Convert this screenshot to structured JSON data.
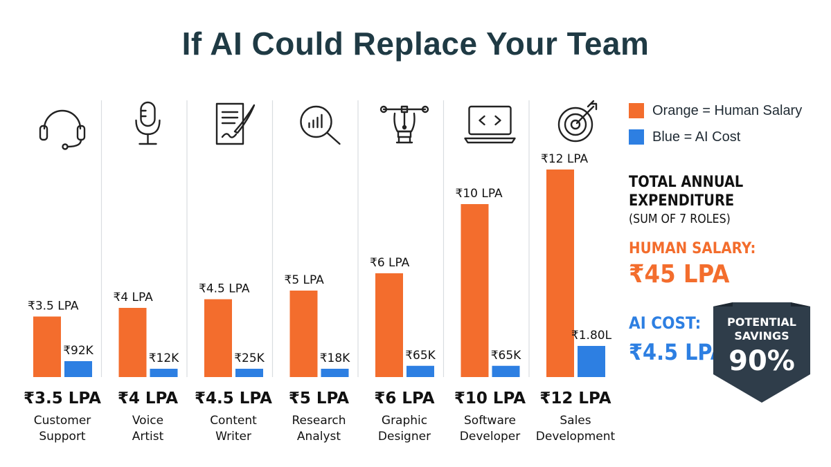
{
  "title": "If AI Could Replace Your Team",
  "colors": {
    "human": "#f36d2d",
    "ai": "#2d7fe2",
    "badge": "#2f3d4a"
  },
  "legend": {
    "human": "Orange = Human Salary",
    "ai": "Blue = AI Cost"
  },
  "summary": {
    "heading_line1": "TOTAL ANNUAL",
    "heading_line2": "EXPENDITURE",
    "subheading": "(SUM OF 7 ROLES)",
    "human_label": "HUMAN SALARY:",
    "human_value": "₹45 LPA",
    "ai_label": "AI COST:",
    "ai_value": "₹4.5 LPA"
  },
  "badge": {
    "line1": "POTENTIAL",
    "line2": "SAVINGS",
    "value": "90%"
  },
  "chart_data": {
    "type": "bar",
    "unit": "₹ per annum",
    "categories": [
      {
        "line1": "Customer",
        "line2": "Support",
        "icon": "headset-icon"
      },
      {
        "line1": "Voice",
        "line2": "Artist",
        "icon": "microphone-icon"
      },
      {
        "line1": "Content",
        "line2": "Writer",
        "icon": "document-quill-icon"
      },
      {
        "line1": "Research",
        "line2": "Analyst",
        "icon": "magnifier-chart-icon"
      },
      {
        "line1": "Graphic",
        "line2": "Designer",
        "icon": "pen-tool-icon"
      },
      {
        "line1": "Software",
        "line2": "Developer",
        "icon": "laptop-code-icon"
      },
      {
        "line1": "Sales",
        "line2": "Development",
        "icon": "target-icon"
      }
    ],
    "series": [
      {
        "key": "human",
        "values": [
          350000,
          400000,
          450000,
          500000,
          600000,
          1000000,
          1200000
        ],
        "labels": [
          "₹3.5 LPA",
          "₹4 LPA",
          "₹4.5 LPA",
          "₹5 LPA",
          "₹6 LPA",
          "₹10 LPA",
          "₹12 LPA"
        ]
      },
      {
        "key": "ai",
        "values": [
          92000,
          12000,
          25000,
          18000,
          65000,
          65000,
          180000
        ],
        "labels": [
          "₹92K",
          "₹12K",
          "₹25K",
          "₹18K",
          "₹65K",
          "₹65K",
          "₹1.80L"
        ]
      }
    ],
    "bottom_labels": [
      "₹3.5 LPA",
      "₹4 LPA",
      "₹4.5 LPA",
      "₹5 LPA",
      "₹6 LPA",
      "₹10 LPA",
      "₹12 LPA"
    ],
    "grid": false,
    "legend_position": "right"
  }
}
